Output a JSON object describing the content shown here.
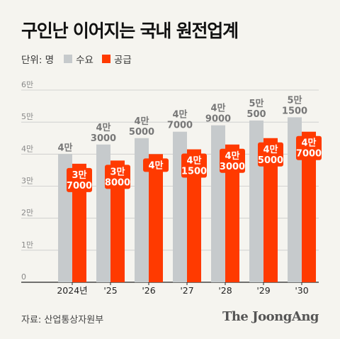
{
  "title": "구인난 이어지는 국내 원전업계",
  "legend": {
    "unit": "단위: 명",
    "demand_label": "수요",
    "supply_label": "공급"
  },
  "colors": {
    "demand": "#c6cacc",
    "supply": "#ff3a00",
    "label_demand": "#777777",
    "label_supply": "#ffffff"
  },
  "source": "자료: 산업통상자원부",
  "brand": "The JoongAng",
  "chart_data": {
    "type": "bar",
    "categories": [
      "2024년",
      "'25",
      "'26",
      "'27",
      "'28",
      "'29",
      "'30"
    ],
    "series": [
      {
        "name": "수요",
        "values": [
          40000,
          43000,
          45000,
          47000,
          49000,
          50500,
          51500
        ],
        "labels": [
          [
            "4만"
          ],
          [
            "4만",
            "3000"
          ],
          [
            "4만",
            "5000"
          ],
          [
            "4만",
            "7000"
          ],
          [
            "4만",
            "9000"
          ],
          [
            "5만",
            "500"
          ],
          [
            "5만",
            "1500"
          ]
        ]
      },
      {
        "name": "공급",
        "values": [
          37000,
          38000,
          40000,
          41500,
          43000,
          45000,
          47000
        ],
        "labels": [
          [
            "3만",
            "7000"
          ],
          [
            "3만",
            "8000"
          ],
          [
            "4만"
          ],
          [
            "4만",
            "1500"
          ],
          [
            "4만",
            "3000"
          ],
          [
            "4만",
            "5000"
          ],
          [
            "4만",
            "7000"
          ]
        ]
      }
    ],
    "y_ticks": [
      {
        "value": 0,
        "label": "0"
      },
      {
        "value": 10000,
        "label": "1만"
      },
      {
        "value": 20000,
        "label": "2만"
      },
      {
        "value": 30000,
        "label": "3만"
      },
      {
        "value": 40000,
        "label": "4만"
      },
      {
        "value": 50000,
        "label": "5만"
      },
      {
        "value": 60000,
        "label": "6만"
      }
    ],
    "ylim": [
      0,
      60000
    ],
    "grid": true,
    "legend_position": "top-left"
  }
}
